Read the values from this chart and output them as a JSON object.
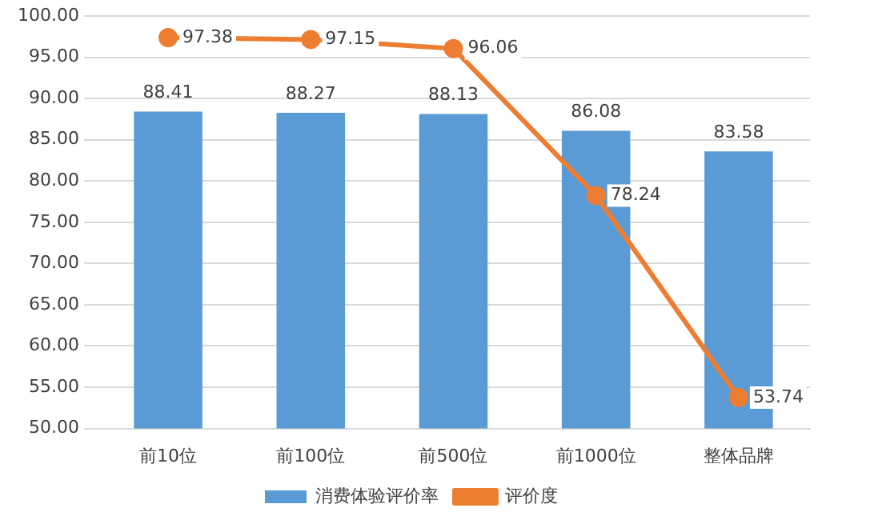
{
  "chart_data": {
    "type": "bar",
    "categories": [
      "前10位",
      "前100位",
      "前500位",
      "前1000位",
      "整体品牌"
    ],
    "series": [
      {
        "name": "消费体验评价率",
        "color": "#5b9bd5",
        "values": [
          88.41,
          88.27,
          88.13,
          86.08,
          83.58
        ]
      },
      {
        "name": "评价度",
        "type": "line",
        "color": "#ed7d31",
        "values": [
          97.38,
          97.15,
          96.06,
          78.24,
          53.74
        ]
      }
    ],
    "ylim": [
      50,
      100
    ],
    "yticks": [
      {
        "value": 50,
        "label": "50.00"
      },
      {
        "value": 55,
        "label": "55.00"
      },
      {
        "value": 60,
        "label": "60.00"
      },
      {
        "value": 65,
        "label": "65.00"
      },
      {
        "value": 70,
        "label": "70.00"
      },
      {
        "value": 75,
        "label": "75.00"
      },
      {
        "value": 80,
        "label": "80.00"
      },
      {
        "value": 85,
        "label": "85.00"
      },
      {
        "value": 90,
        "label": "90.00"
      },
      {
        "value": 95,
        "label": "95.00"
      },
      {
        "value": 100,
        "label": "100.00"
      }
    ],
    "grid": "y",
    "legend": "bottom",
    "marker": "circle",
    "data_labels": true
  }
}
